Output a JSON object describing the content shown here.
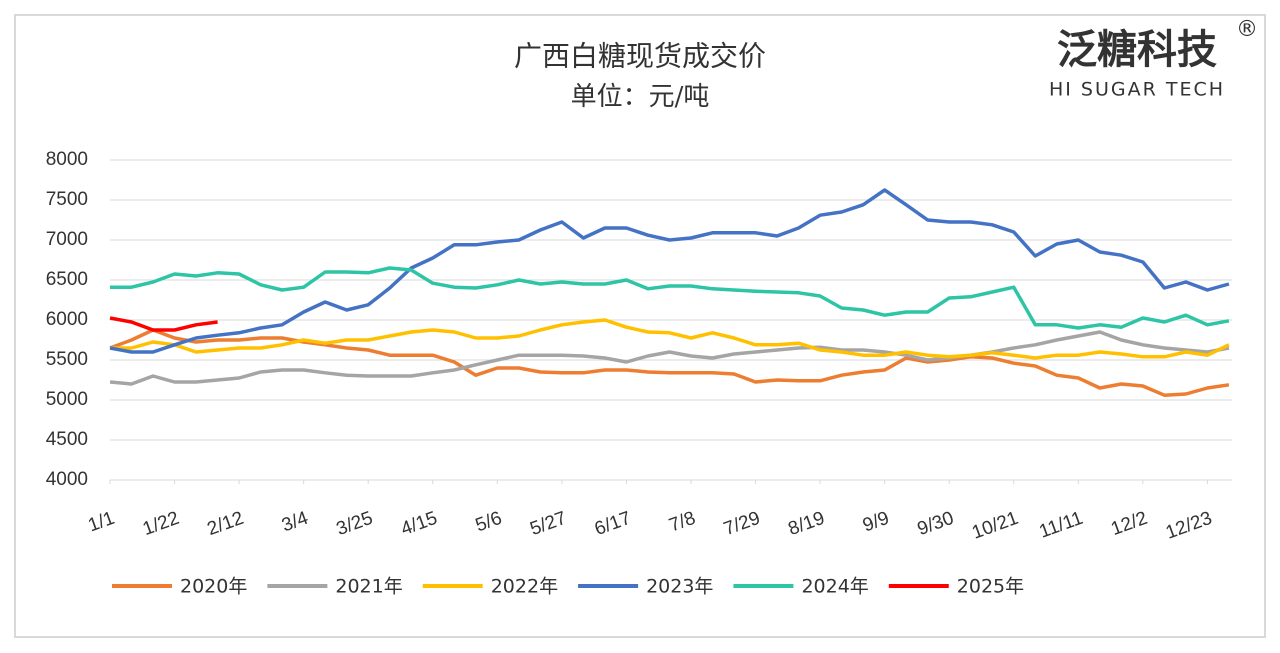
{
  "chart_data": {
    "type": "line",
    "title": "广西白糖现货成交价",
    "subtitle": "单位：元/吨",
    "logo": "泛糖科技",
    "logo_en": "HI SUGAR TECH",
    "logo_mark": "®",
    "x": [
      0,
      7,
      14,
      21,
      28,
      35,
      42,
      49,
      56,
      63,
      70,
      77,
      84,
      91,
      98,
      105,
      112,
      119,
      126,
      133,
      140,
      147,
      154,
      161,
      168,
      175,
      182,
      189,
      196,
      203,
      210,
      217,
      224,
      231,
      238,
      245,
      252,
      259,
      266,
      273,
      280,
      287,
      294,
      301,
      308,
      315,
      322,
      329,
      336,
      343,
      350,
      357,
      364
    ],
    "xlim": [
      0,
      365
    ],
    "xticks": [
      {
        "value": 0,
        "label": "1/1"
      },
      {
        "value": 21,
        "label": "1/22"
      },
      {
        "value": 42,
        "label": "2/12"
      },
      {
        "value": 63,
        "label": "3/4"
      },
      {
        "value": 84,
        "label": "3/25"
      },
      {
        "value": 105,
        "label": "4/15"
      },
      {
        "value": 126,
        "label": "5/6"
      },
      {
        "value": 147,
        "label": "5/27"
      },
      {
        "value": 168,
        "label": "6/17"
      },
      {
        "value": 189,
        "label": "7/8"
      },
      {
        "value": 210,
        "label": "7/29"
      },
      {
        "value": 231,
        "label": "8/19"
      },
      {
        "value": 252,
        "label": "9/9"
      },
      {
        "value": 273,
        "label": "9/30"
      },
      {
        "value": 294,
        "label": "10/21"
      },
      {
        "value": 315,
        "label": "11/11"
      },
      {
        "value": 336,
        "label": "12/2"
      },
      {
        "value": 357,
        "label": "12/23"
      }
    ],
    "ylim": [
      4000,
      8000
    ],
    "yticks": [
      4000,
      4500,
      5000,
      5500,
      6000,
      6500,
      7000,
      7500,
      8000
    ],
    "grid": true,
    "series": [
      {
        "name": "2020年",
        "color": "#ed7d31",
        "values": [
          5650,
          5750,
          5875,
          5775,
          5725,
          5750,
          5750,
          5775,
          5775,
          5725,
          5690,
          5650,
          5625,
          5560,
          5560,
          5560,
          5475,
          5310,
          5400,
          5400,
          5350,
          5340,
          5340,
          5375,
          5375,
          5350,
          5340,
          5340,
          5340,
          5325,
          5225,
          5250,
          5240,
          5240,
          5310,
          5350,
          5375,
          5525,
          5475,
          5500,
          5540,
          5525,
          5460,
          5425,
          5310,
          5275,
          5150,
          5200,
          5175,
          5060,
          5075,
          5150,
          5190
        ]
      },
      {
        "name": "2021年",
        "color": "#a5a5a5",
        "values": [
          5225,
          5200,
          5300,
          5225,
          5225,
          5250,
          5275,
          5350,
          5375,
          5375,
          5340,
          5310,
          5300,
          5300,
          5300,
          5340,
          5375,
          5440,
          5500,
          5560,
          5560,
          5560,
          5550,
          5525,
          5475,
          5550,
          5600,
          5550,
          5525,
          5575,
          5600,
          5625,
          5650,
          5660,
          5625,
          5625,
          5600,
          5560,
          5500,
          5525,
          5560,
          5600,
          5650,
          5690,
          5750,
          5800,
          5850,
          5750,
          5690,
          5650,
          5625,
          5600,
          5650
        ]
      },
      {
        "name": "2022年",
        "color": "#ffc000",
        "values": [
          5650,
          5650,
          5725,
          5690,
          5600,
          5625,
          5650,
          5650,
          5690,
          5750,
          5710,
          5750,
          5750,
          5800,
          5850,
          5875,
          5850,
          5775,
          5775,
          5800,
          5875,
          5940,
          5975,
          6000,
          5910,
          5850,
          5840,
          5775,
          5840,
          5775,
          5690,
          5690,
          5710,
          5625,
          5600,
          5560,
          5560,
          5600,
          5560,
          5540,
          5560,
          5590,
          5560,
          5525,
          5560,
          5560,
          5600,
          5575,
          5540,
          5540,
          5600,
          5560,
          5690
        ]
      },
      {
        "name": "2023年",
        "color": "#4472c4",
        "values": [
          5650,
          5600,
          5600,
          5690,
          5775,
          5810,
          5840,
          5900,
          5940,
          6100,
          6225,
          6125,
          6190,
          6400,
          6650,
          6775,
          6940,
          6940,
          6975,
          7000,
          7125,
          7225,
          7025,
          7150,
          7150,
          7060,
          7000,
          7025,
          7090,
          7090,
          7090,
          7050,
          7150,
          7310,
          7350,
          7440,
          7625,
          7440,
          7250,
          7225,
          7225,
          7190,
          7100,
          6800,
          6950,
          7000,
          6850,
          6810,
          6725,
          6400,
          6475,
          6375,
          6450
        ]
      },
      {
        "name": "2024年",
        "color": "#2ec4a6",
        "values": [
          6410,
          6410,
          6475,
          6575,
          6550,
          6590,
          6575,
          6440,
          6375,
          6410,
          6600,
          6600,
          6590,
          6650,
          6625,
          6460,
          6410,
          6400,
          6440,
          6500,
          6450,
          6475,
          6450,
          6450,
          6500,
          6390,
          6425,
          6425,
          6390,
          6375,
          6360,
          6350,
          6340,
          6300,
          6150,
          6125,
          6060,
          6100,
          6100,
          6275,
          6290,
          6350,
          6410,
          5940,
          5940,
          5900,
          5940,
          5910,
          6025,
          5975,
          6060,
          5940,
          5990
        ]
      },
      {
        "name": "2025年",
        "color": "#ff0000",
        "values": [
          6025,
          5975,
          5875,
          5875,
          5940,
          5975,
          null,
          null,
          null,
          null,
          null,
          null,
          null,
          null,
          null,
          null,
          null,
          null,
          null,
          null,
          null,
          null,
          null,
          null,
          null,
          null,
          null,
          null,
          null,
          null,
          null,
          null,
          null,
          null,
          null,
          null,
          null,
          null,
          null,
          null,
          null,
          null,
          null,
          null,
          null,
          null,
          null,
          null,
          null,
          null,
          null,
          null,
          null
        ]
      }
    ]
  }
}
